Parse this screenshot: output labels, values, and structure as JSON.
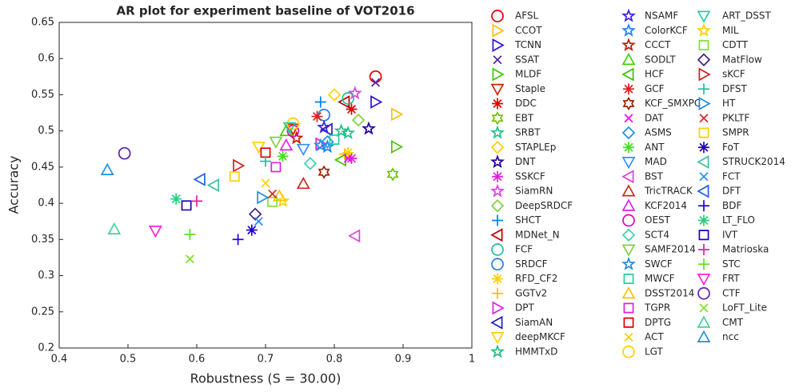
{
  "chart_data": {
    "type": "scatter",
    "title": "AR plot for experiment baseline of VOT2016",
    "x_label": "Robustness (S = 30.00)",
    "y_label": "Accuracy",
    "xlim": [
      0.4,
      1
    ],
    "xticks": [
      0.4,
      0.5,
      0.6,
      0.7,
      0.8,
      0.9,
      1
    ],
    "ylim": [
      0.2,
      0.65
    ],
    "yticks": [
      0.2,
      0.25,
      0.3,
      0.35,
      0.4,
      0.45,
      0.5,
      0.55,
      0.6,
      0.65
    ],
    "grid": false,
    "legend": "outside-right",
    "series": [
      {
        "name": "AFSL",
        "color": "#e00000",
        "marker": "circle",
        "x": [
          0.86
        ],
        "values": [
          0.575
        ]
      },
      {
        "name": "CCOT",
        "color": "#ffc000",
        "marker": "tri-right",
        "x": [
          0.89
        ],
        "values": [
          0.523
        ]
      },
      {
        "name": "TCNN",
        "color": "#3010e0",
        "marker": "tri-right",
        "x": [
          0.86
        ],
        "values": [
          0.54
        ]
      },
      {
        "name": "SSAT",
        "color": "#5020b0",
        "marker": "x",
        "x": [
          0.86
        ],
        "values": [
          0.567
        ]
      },
      {
        "name": "MLDF",
        "color": "#40c800",
        "marker": "tri-right",
        "x": [
          0.89
        ],
        "values": [
          0.478
        ]
      },
      {
        "name": "Staple",
        "color": "#d02000",
        "marker": "tri-down",
        "x": [
          0.74
        ],
        "values": [
          0.503
        ]
      },
      {
        "name": "DDC",
        "color": "#e00000",
        "marker": "asterisk",
        "x": [
          0.825
        ],
        "values": [
          0.53
        ]
      },
      {
        "name": "EBT",
        "color": "#70c000",
        "marker": "hexagram",
        "x": [
          0.885
        ],
        "values": [
          0.44
        ]
      },
      {
        "name": "SRBT",
        "color": "#20c090",
        "marker": "pentagram",
        "x": [
          0.82
        ],
        "values": [
          0.497
        ]
      },
      {
        "name": "STAPLEp",
        "color": "#ffd000",
        "marker": "diamond",
        "x": [
          0.8
        ],
        "values": [
          0.55
        ]
      },
      {
        "name": "DNT",
        "color": "#2000a0",
        "marker": "pentagram",
        "x": [
          0.85
        ],
        "values": [
          0.503
        ]
      },
      {
        "name": "SSKCF",
        "color": "#e020e0",
        "marker": "asterisk",
        "x": [
          0.825
        ],
        "values": [
          0.462
        ]
      },
      {
        "name": "SiamRN",
        "color": "#e040e0",
        "marker": "pentagram",
        "x": [
          0.83
        ],
        "values": [
          0.552
        ]
      },
      {
        "name": "DeepSRDCF",
        "color": "#80d040",
        "marker": "diamond",
        "x": [
          0.835
        ],
        "values": [
          0.515
        ]
      },
      {
        "name": "SHCT",
        "color": "#0080ff",
        "marker": "plus",
        "x": [
          0.78
        ],
        "values": [
          0.54
        ]
      },
      {
        "name": "MDNet_N",
        "color": "#c00000",
        "marker": "tri-left",
        "x": [
          0.815
        ],
        "values": [
          0.54
        ]
      },
      {
        "name": "FCF",
        "color": "#20c0a0",
        "marker": "circle",
        "x": [
          0.82
        ],
        "values": [
          0.545
        ]
      },
      {
        "name": "SRDCF",
        "color": "#2080e0",
        "marker": "circle",
        "x": [
          0.785
        ],
        "values": [
          0.522
        ]
      },
      {
        "name": "RFD_CF2",
        "color": "#ffd000",
        "marker": "asterisk",
        "x": [
          0.82
        ],
        "values": [
          0.47
        ]
      },
      {
        "name": "GGTv2",
        "color": "#ffc000",
        "marker": "plus",
        "x": [
          0.815
        ],
        "values": [
          0.468
        ]
      },
      {
        "name": "DPT",
        "color": "#e020e0",
        "marker": "tri-right",
        "x": [
          0.78
        ],
        "values": [
          0.482
        ]
      },
      {
        "name": "SiamAN",
        "color": "#2020c0",
        "marker": "tri-left",
        "x": [
          0.79
        ],
        "values": [
          0.502
        ]
      },
      {
        "name": "deepMKCF",
        "color": "#ffd000",
        "marker": "tri-down",
        "x": [
          0.69
        ],
        "values": [
          0.478
        ]
      },
      {
        "name": "HMMTxD",
        "color": "#20c080",
        "marker": "pentagram",
        "x": [
          0.81
        ],
        "values": [
          0.5
        ]
      },
      {
        "name": "NSAMF",
        "color": "#4020e0",
        "marker": "pentagram",
        "x": [
          0.785
        ],
        "values": [
          0.505
        ]
      },
      {
        "name": "ColorKCF",
        "color": "#2080ff",
        "marker": "pentagram",
        "x": [
          0.79
        ],
        "values": [
          0.478
        ]
      },
      {
        "name": "CCCT",
        "color": "#c02000",
        "marker": "pentagram",
        "x": [
          0.745
        ],
        "values": [
          0.49
        ]
      },
      {
        "name": "SODLT",
        "color": "#40d000",
        "marker": "tri-up",
        "x": [
          0.73
        ],
        "values": [
          0.5
        ]
      },
      {
        "name": "HCF",
        "color": "#40c000",
        "marker": "tri-left",
        "x": [
          0.81
        ],
        "values": [
          0.46
        ]
      },
      {
        "name": "GCF",
        "color": "#e02020",
        "marker": "asterisk",
        "x": [
          0.775
        ],
        "values": [
          0.52
        ]
      },
      {
        "name": "KCF_SMXPC",
        "color": "#a02000",
        "marker": "hexagram",
        "x": [
          0.785
        ],
        "values": [
          0.443
        ]
      },
      {
        "name": "DAT",
        "color": "#ff00ff",
        "marker": "x",
        "x": [
          0.82
        ],
        "values": [
          0.462
        ]
      },
      {
        "name": "ASMS",
        "color": "#2090e0",
        "marker": "diamond",
        "x": [
          0.79
        ],
        "values": [
          0.485
        ]
      },
      {
        "name": "ANT",
        "color": "#40e020",
        "marker": "asterisk",
        "x": [
          0.725
        ],
        "values": [
          0.465
        ]
      },
      {
        "name": "MAD",
        "color": "#3090ff",
        "marker": "tri-down",
        "x": [
          0.755
        ],
        "values": [
          0.475
        ]
      },
      {
        "name": "BST",
        "color": "#e040e0",
        "marker": "tri-left",
        "x": [
          0.83
        ],
        "values": [
          0.355
        ]
      },
      {
        "name": "TricTRACK",
        "color": "#c03020",
        "marker": "tri-up",
        "x": [
          0.755
        ],
        "values": [
          0.427
        ]
      },
      {
        "name": "KCF2014",
        "color": "#e020e0",
        "marker": "tri-up",
        "x": [
          0.73
        ],
        "values": [
          0.48
        ]
      },
      {
        "name": "OEST",
        "color": "#e000c0",
        "marker": "circle",
        "x": [
          0.74
        ],
        "values": [
          0.5
        ]
      },
      {
        "name": "SCT4",
        "color": "#40d0b0",
        "marker": "diamond",
        "x": [
          0.765
        ],
        "values": [
          0.455
        ]
      },
      {
        "name": "SAMF2014",
        "color": "#80d040",
        "marker": "tri-down",
        "x": [
          0.715
        ],
        "values": [
          0.485
        ]
      },
      {
        "name": "SWCF",
        "color": "#2090e0",
        "marker": "pentagram",
        "x": [
          0.78
        ],
        "values": [
          0.48
        ]
      },
      {
        "name": "MWCF",
        "color": "#20d0a0",
        "marker": "square",
        "x": [
          0.8
        ],
        "values": [
          0.488
        ]
      },
      {
        "name": "DSST2014",
        "color": "#ffc000",
        "marker": "tri-up",
        "x": [
          0.72
        ],
        "values": [
          0.41
        ]
      },
      {
        "name": "TGPR",
        "color": "#e020e0",
        "marker": "square",
        "x": [
          0.715
        ],
        "values": [
          0.45
        ]
      },
      {
        "name": "DPTG",
        "color": "#e00000",
        "marker": "square",
        "x": [
          0.7
        ],
        "values": [
          0.47
        ]
      },
      {
        "name": "ACT",
        "color": "#ffd000",
        "marker": "x",
        "x": [
          0.7
        ],
        "values": [
          0.428
        ]
      },
      {
        "name": "LGT",
        "color": "#ffd000",
        "marker": "circle",
        "x": [
          0.74
        ],
        "values": [
          0.51
        ]
      },
      {
        "name": "ART_DSST",
        "color": "#20d0a0",
        "marker": "tri-down",
        "x": [
          0.735
        ],
        "values": [
          0.505
        ]
      },
      {
        "name": "MIL",
        "color": "#ffd000",
        "marker": "pentagram",
        "x": [
          0.725
        ],
        "values": [
          0.403
        ]
      },
      {
        "name": "CDTT",
        "color": "#80e040",
        "marker": "square",
        "x": [
          0.71
        ],
        "values": [
          0.402
        ]
      },
      {
        "name": "MatFlow",
        "color": "#402080",
        "marker": "diamond",
        "x": [
          0.685
        ],
        "values": [
          0.385
        ]
      },
      {
        "name": "sKCF",
        "color": "#d02020",
        "marker": "tri-right",
        "x": [
          0.66
        ],
        "values": [
          0.452
        ]
      },
      {
        "name": "DFST",
        "color": "#20c0a0",
        "marker": "plus",
        "x": [
          0.7
        ],
        "values": [
          0.458
        ]
      },
      {
        "name": "HT",
        "color": "#2090e0",
        "marker": "tri-right",
        "x": [
          0.695
        ],
        "values": [
          0.408
        ]
      },
      {
        "name": "PKLTF",
        "color": "#e02020",
        "marker": "x",
        "x": [
          0.71
        ],
        "values": [
          0.413
        ]
      },
      {
        "name": "SMPR",
        "color": "#ffd000",
        "marker": "square",
        "x": [
          0.655
        ],
        "values": [
          0.437
        ]
      },
      {
        "name": "FoT",
        "color": "#2000c0",
        "marker": "asterisk",
        "x": [
          0.68
        ],
        "values": [
          0.363
        ]
      },
      {
        "name": "STRUCK2014",
        "color": "#40c0a0",
        "marker": "tri-left",
        "x": [
          0.625
        ],
        "values": [
          0.425
        ]
      },
      {
        "name": "FCT",
        "color": "#2090ff",
        "marker": "x",
        "x": [
          0.69
        ],
        "values": [
          0.375
        ]
      },
      {
        "name": "DFT",
        "color": "#2060e0",
        "marker": "tri-left",
        "x": [
          0.605
        ],
        "values": [
          0.433
        ]
      },
      {
        "name": "BDF",
        "color": "#2000e0",
        "marker": "plus",
        "x": [
          0.66
        ],
        "values": [
          0.35
        ]
      },
      {
        "name": "LT_FLO",
        "color": "#20d080",
        "marker": "asterisk",
        "x": [
          0.57
        ],
        "values": [
          0.406
        ]
      },
      {
        "name": "IVT",
        "color": "#2000c0",
        "marker": "square",
        "x": [
          0.585
        ],
        "values": [
          0.397
        ]
      },
      {
        "name": "Matrioska",
        "color": "#e020a0",
        "marker": "plus",
        "x": [
          0.6
        ],
        "values": [
          0.403
        ]
      },
      {
        "name": "STC",
        "color": "#60e020",
        "marker": "plus",
        "x": [
          0.59
        ],
        "values": [
          0.357
        ]
      },
      {
        "name": "FRT",
        "color": "#ff20e0",
        "marker": "tri-down",
        "x": [
          0.54
        ],
        "values": [
          0.362
        ]
      },
      {
        "name": "CTF",
        "color": "#6020b0",
        "marker": "circle",
        "x": [
          0.495
        ],
        "values": [
          0.469
        ]
      },
      {
        "name": "LoFT_Lite",
        "color": "#80e020",
        "marker": "x",
        "x": [
          0.59
        ],
        "values": [
          0.323
        ]
      },
      {
        "name": "CMT",
        "color": "#40d0a0",
        "marker": "tri-up",
        "x": [
          0.48
        ],
        "values": [
          0.364
        ]
      },
      {
        "name": "ncc",
        "color": "#2090e0",
        "marker": "tri-up",
        "x": [
          0.47
        ],
        "values": [
          0.446
        ]
      }
    ]
  }
}
